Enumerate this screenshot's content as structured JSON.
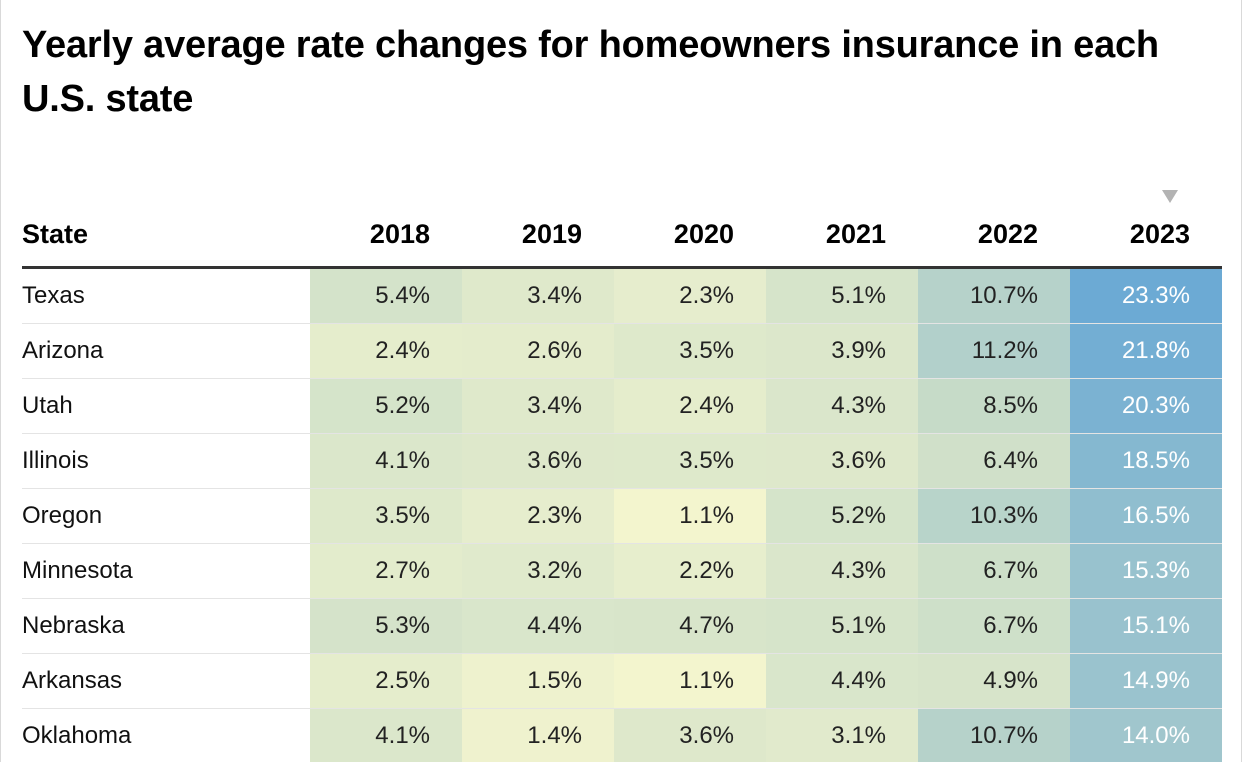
{
  "chart_data": {
    "type": "heatmap",
    "title": "Yearly average rate changes for homeowners insurance in each U.S. state",
    "row_header": "State",
    "columns": [
      "2018",
      "2019",
      "2020",
      "2021",
      "2022",
      "2023"
    ],
    "sorted_column": "2023",
    "sort_indicator": "▼",
    "rows": [
      {
        "state": "Texas",
        "values": [
          "5.4%",
          "3.4%",
          "2.3%",
          "5.1%",
          "10.7%",
          "23.3%"
        ]
      },
      {
        "state": "Arizona",
        "values": [
          "2.4%",
          "2.6%",
          "3.5%",
          "3.9%",
          "11.2%",
          "21.8%"
        ]
      },
      {
        "state": "Utah",
        "values": [
          "5.2%",
          "3.4%",
          "2.4%",
          "4.3%",
          "8.5%",
          "20.3%"
        ]
      },
      {
        "state": "Illinois",
        "values": [
          "4.1%",
          "3.6%",
          "3.5%",
          "3.6%",
          "6.4%",
          "18.5%"
        ]
      },
      {
        "state": "Oregon",
        "values": [
          "3.5%",
          "2.3%",
          "1.1%",
          "5.2%",
          "10.3%",
          "16.5%"
        ]
      },
      {
        "state": "Minnesota",
        "values": [
          "2.7%",
          "3.2%",
          "2.2%",
          "4.3%",
          "6.7%",
          "15.3%"
        ]
      },
      {
        "state": "Nebraska",
        "values": [
          "5.3%",
          "4.4%",
          "4.7%",
          "5.1%",
          "6.7%",
          "15.1%"
        ]
      },
      {
        "state": "Arkansas",
        "values": [
          "2.5%",
          "1.5%",
          "1.1%",
          "4.4%",
          "4.9%",
          "14.9%"
        ]
      },
      {
        "state": "Oklahoma",
        "values": [
          "4.1%",
          "1.4%",
          "3.6%",
          "3.1%",
          "10.7%",
          "14.0%"
        ]
      }
    ],
    "color_scale": {
      "low": "#f7f7cf",
      "mid": "#c8dcc8",
      "high": "#68a8d4"
    }
  }
}
